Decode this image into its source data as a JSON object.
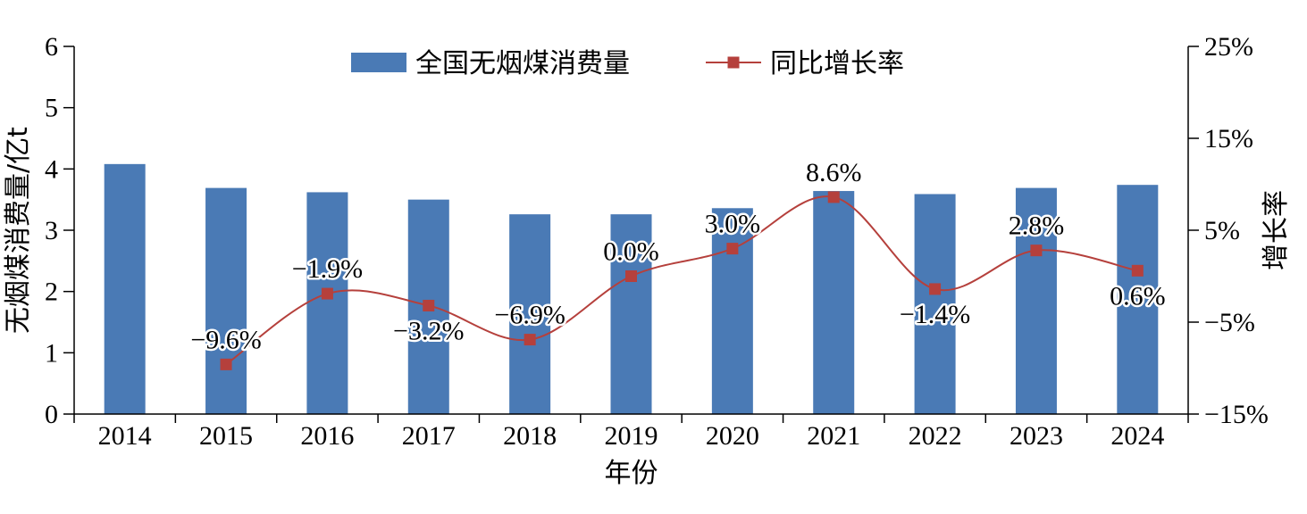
{
  "chart_data": {
    "type": "bar+line",
    "categories": [
      "2014",
      "2015",
      "2016",
      "2017",
      "2018",
      "2019",
      "2020",
      "2021",
      "2022",
      "2023",
      "2024"
    ],
    "series": [
      {
        "name": "全国无烟煤消费量",
        "type": "bar",
        "axis": "left",
        "color": "#4a7ab5",
        "values": [
          4.08,
          3.69,
          3.62,
          3.5,
          3.26,
          3.26,
          3.36,
          3.64,
          3.59,
          3.69,
          3.74
        ]
      },
      {
        "name": "同比增长率",
        "type": "line",
        "axis": "right",
        "color": "#b5403c",
        "values": [
          null,
          -9.6,
          -1.9,
          -3.2,
          -6.9,
          0.0,
          3.0,
          8.6,
          -1.4,
          2.8,
          0.6
        ],
        "labels": [
          "",
          "−9.6%",
          "−1.9%",
          "−3.2%",
          "−6.9%",
          "0.0%",
          "3.0%",
          "8.6%",
          "−1.4%",
          "2.8%",
          "0.6%"
        ]
      }
    ],
    "xlabel": "年份",
    "ylabel": "无烟煤消费量/亿t",
    "y2label": "增长率",
    "ylim": [
      0,
      6
    ],
    "y2lim": [
      -15,
      25
    ],
    "yticks": [
      "0",
      "1",
      "2",
      "3",
      "4",
      "5",
      "6"
    ],
    "y2ticks": [
      "−15%",
      "−5%",
      "5%",
      "15%",
      "25%"
    ],
    "legend_position": "top-center",
    "grid": false
  }
}
